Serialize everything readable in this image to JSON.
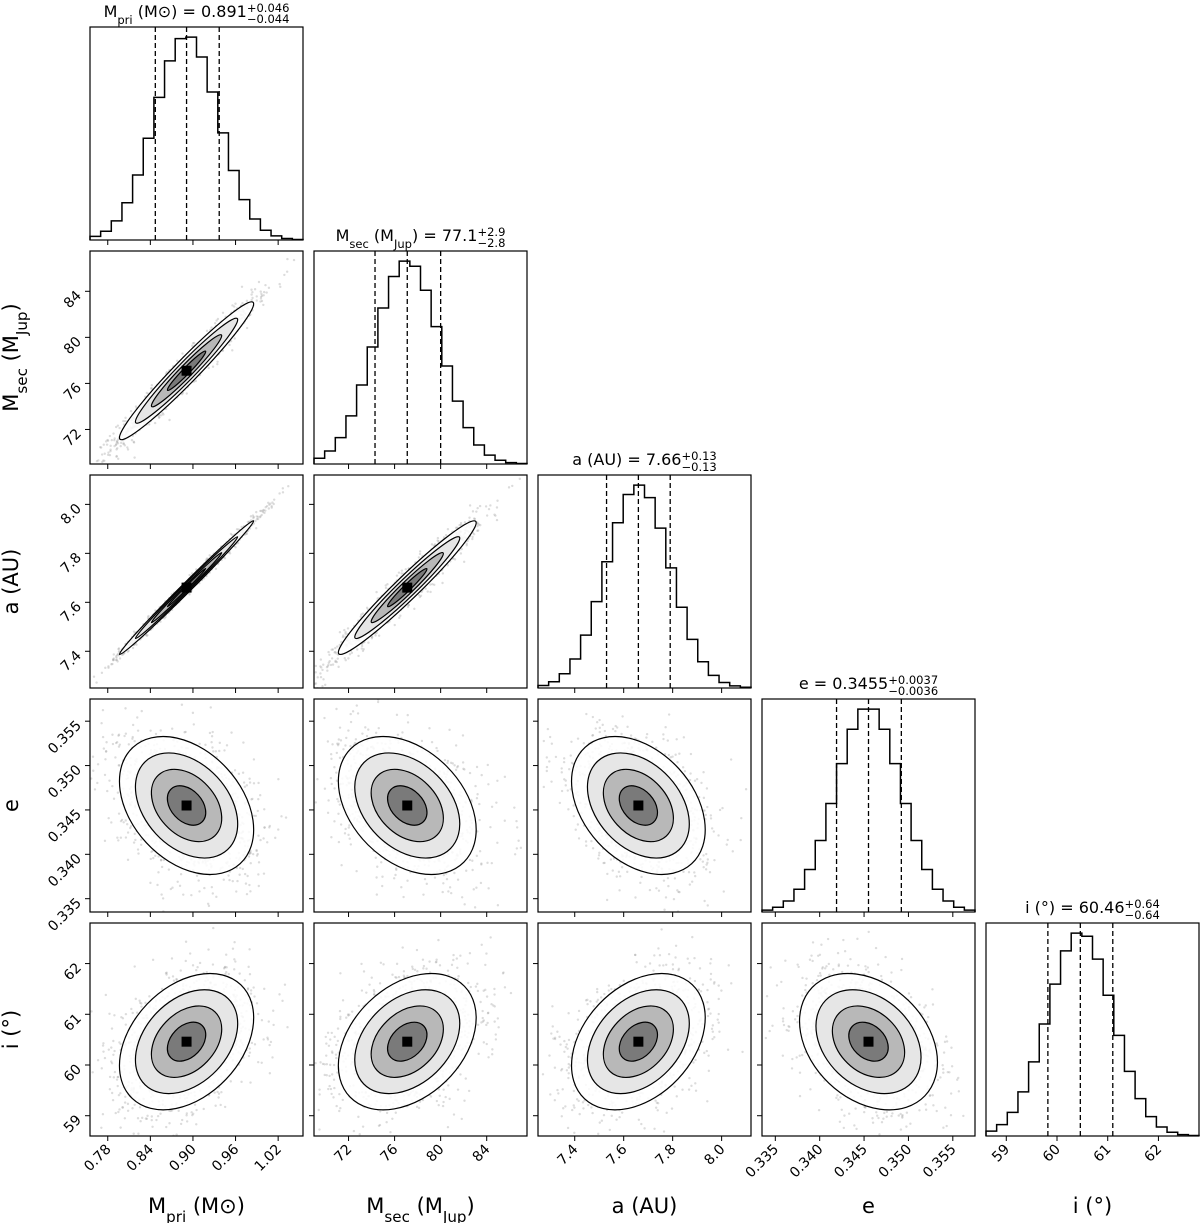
{
  "chart_data": {
    "type": "corner",
    "params": [
      {
        "key": "mpri",
        "label_main": "M",
        "label_sub": "pri",
        "label_unit": "M⊙",
        "title_prefix": " = ",
        "median_text": "0.891",
        "err_plus": "+0.046",
        "err_minus": "−0.044",
        "median": 0.891,
        "q_low": 0.847,
        "q_high": 0.937,
        "sigma": 0.045,
        "range": [
          0.755,
          1.055
        ],
        "ticks": [
          0.78,
          0.84,
          0.9,
          0.96,
          1.02
        ],
        "tick_labels": [
          "0.78",
          "0.84",
          "0.90",
          "0.96",
          "1.02"
        ]
      },
      {
        "key": "msec",
        "label_main": "M",
        "label_sub": "sec",
        "label_unit": "M",
        "label_unit_sub": "Jup",
        "title_prefix": " = ",
        "median_text": "77.1",
        "err_plus": "+2.9",
        "err_minus": "−2.8",
        "median": 77.1,
        "q_low": 74.3,
        "q_high": 80.0,
        "sigma": 2.85,
        "range": [
          69.0,
          87.5
        ],
        "ticks": [
          72,
          76,
          80,
          84
        ],
        "tick_labels": [
          "72",
          "76",
          "80",
          "84"
        ]
      },
      {
        "key": "a",
        "label_main": "a (AU)",
        "title_prefix": " = ",
        "median_text": "7.66",
        "err_plus": "+0.13",
        "err_minus": "−0.13",
        "median": 7.66,
        "q_low": 7.53,
        "q_high": 7.79,
        "sigma": 0.13,
        "range": [
          7.25,
          8.12
        ],
        "ticks": [
          7.4,
          7.6,
          7.8,
          8.0
        ],
        "tick_labels": [
          "7.4",
          "7.6",
          "7.8",
          "8.0"
        ]
      },
      {
        "key": "e",
        "label_main": "e",
        "title_prefix": " = ",
        "median_text": "0.3455",
        "err_plus": "+0.0037",
        "err_minus": "−0.0036",
        "median": 0.3455,
        "q_low": 0.3419,
        "q_high": 0.3492,
        "sigma": 0.0037,
        "range": [
          0.3335,
          0.3575
        ],
        "ticks": [
          0.335,
          0.34,
          0.345,
          0.35,
          0.355
        ],
        "tick_labels": [
          "0.335",
          "0.340",
          "0.345",
          "0.350",
          "0.355"
        ]
      },
      {
        "key": "i",
        "label_main": "i (°)",
        "title_prefix": " = ",
        "median_text": "60.46",
        "err_plus": "+0.64",
        "err_minus": "−0.64",
        "median": 60.46,
        "q_low": 59.82,
        "q_high": 61.1,
        "sigma": 0.64,
        "range": [
          58.6,
          62.8
        ],
        "ticks": [
          59,
          60,
          61,
          62
        ],
        "tick_labels": [
          "59",
          "60",
          "61",
          "62"
        ]
      }
    ],
    "correlations": {
      "1-0": 0.97,
      "2-0": 0.995,
      "2-1": 0.97,
      "3-0": -0.35,
      "3-1": -0.35,
      "3-2": -0.35,
      "4-0": 0.35,
      "4-1": 0.35,
      "4-2": 0.35,
      "4-3": -0.3
    },
    "colors": {
      "line": "#000000",
      "points": "#9a9a9a",
      "fill_dark": "#000000",
      "fill_light": "#ffffff"
    }
  }
}
